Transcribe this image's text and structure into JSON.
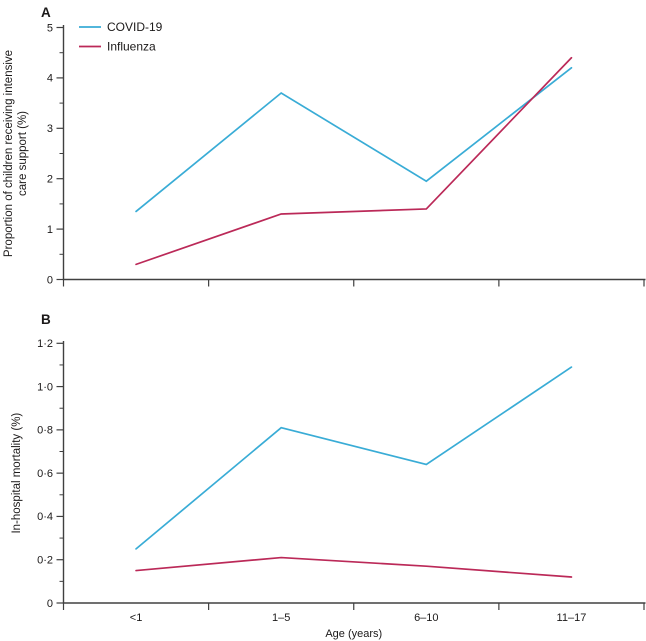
{
  "figure_titles": {
    "panel_a": "A",
    "panel_b": "B"
  },
  "legend": {
    "items": [
      {
        "label": "COVID-19",
        "color": "#39ACD6"
      },
      {
        "label": "Influenza",
        "color": "#BB2958"
      }
    ]
  },
  "x_axis": {
    "title": "Age (years)",
    "categories": [
      "<1",
      "1–5",
      "6–10",
      "11–17"
    ]
  },
  "colors": {
    "axis": "#404040",
    "text": "#1B1919",
    "covid": "#39ACD6",
    "influenza": "#BB2958"
  },
  "chart_data": [
    {
      "type": "line",
      "panel": "A",
      "title": "",
      "categories": [
        "<1",
        "1–5",
        "6–10",
        "11–17"
      ],
      "series": [
        {
          "name": "COVID-19",
          "color": "#39ACD6",
          "values": [
            1.35,
            3.7,
            1.95,
            4.2
          ]
        },
        {
          "name": "Influenza",
          "color": "#BB2958",
          "values": [
            0.3,
            1.3,
            1.4,
            4.4
          ]
        }
      ],
      "xlabel": "Age (years)",
      "ylabel": "Proportion of children receiving intensive care support (%)",
      "ylabel_lines": [
        "Proportion of children receiving intensive",
        "care support (%)"
      ],
      "ylim": [
        0,
        5
      ],
      "ytick_labels": [
        "0",
        "1",
        "2",
        "3",
        "4",
        "5"
      ],
      "minor_tick_step": 0.5,
      "grid": false,
      "legend_position": "top-left"
    },
    {
      "type": "line",
      "panel": "B",
      "title": "",
      "categories": [
        "<1",
        "1–5",
        "6–10",
        "11–17"
      ],
      "series": [
        {
          "name": "COVID-19",
          "color": "#39ACD6",
          "values": [
            0.25,
            0.81,
            0.64,
            1.09
          ]
        },
        {
          "name": "Influenza",
          "color": "#BB2958",
          "values": [
            0.15,
            0.21,
            0.17,
            0.12
          ]
        }
      ],
      "xlabel": "Age (years)",
      "ylabel": "In-hospital mortality (%)",
      "ylabel_lines": [
        "In-hospital mortality (%)"
      ],
      "ylim": [
        0,
        1.2
      ],
      "ytick_labels": [
        "0",
        "0·2",
        "0·4",
        "0·6",
        "0·8",
        "1·0",
        "1·2"
      ],
      "minor_tick_step": 0.1,
      "grid": false,
      "legend_position": "none"
    }
  ]
}
